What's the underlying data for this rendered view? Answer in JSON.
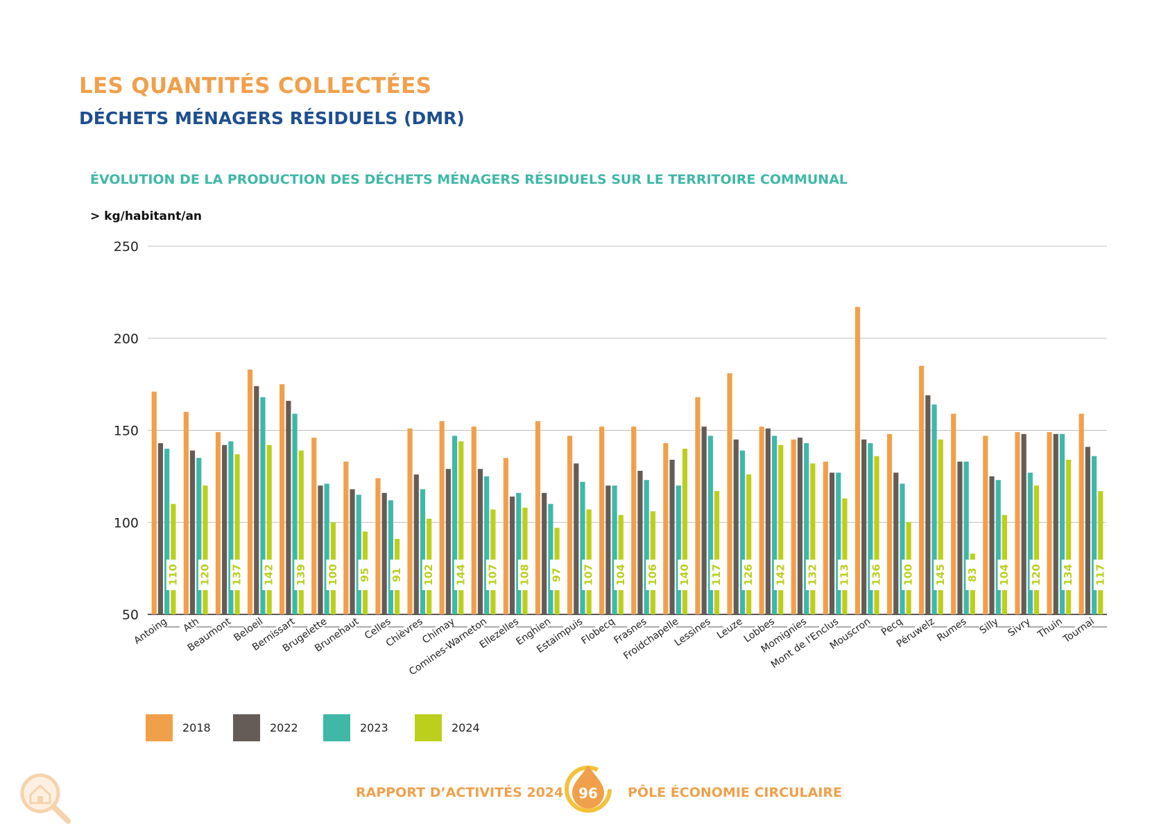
{
  "header": {
    "title": "LES QUANTITÉS COLLECTÉES",
    "subtitle": "DÉCHETS MÉNAGERS RÉSIDUELS (DMR)"
  },
  "chart_title": "ÉVOLUTION DE LA PRODUCTION DES DÉCHETS MÉNAGERS RÉSIDUELS SUR LE TERRITOIRE COMMUNAL",
  "unit_label": "> kg/habitant/an",
  "chart_data": {
    "type": "bar",
    "title": "ÉVOLUTION DE LA PRODUCTION DES DÉCHETS MÉNAGERS RÉSIDUELS SUR LE TERRITOIRE COMMUNAL",
    "ylabel": "> kg/habitant/an",
    "xlabel": "",
    "ylim": [
      50,
      250
    ],
    "yticks": [
      50,
      100,
      150,
      200,
      250
    ],
    "grid": true,
    "legend_position": "bottom-left",
    "data_labels_series": "2024",
    "categories": [
      "Antoing",
      "Ath",
      "Beaumont",
      "Beloeil",
      "Bernissart",
      "Brugelette",
      "Brunehaut",
      "Celles",
      "Chièvres",
      "Chimay",
      "Comines-Warneton",
      "Ellezelles",
      "Enghien",
      "Estaimpuis",
      "Flobecq",
      "Frasnes",
      "Froidchapelle",
      "Lessines",
      "Leuze",
      "Lobbes",
      "Momignies",
      "Mont de l'Enclus",
      "Mouscron",
      "Pecq",
      "Péruwelz",
      "Rumes",
      "Silly",
      "Sivry",
      "Thuin",
      "Tournai"
    ],
    "series": [
      {
        "name": "2018",
        "color": "#f0a04b",
        "values": [
          171,
          160,
          149,
          183,
          175,
          146,
          133,
          124,
          151,
          155,
          152,
          135,
          155,
          147,
          152,
          152,
          143,
          168,
          181,
          152,
          145,
          133,
          217,
          148,
          185,
          159,
          147,
          149,
          149,
          159
        ]
      },
      {
        "name": "2022",
        "color": "#655c57",
        "values": [
          143,
          139,
          142,
          174,
          166,
          120,
          118,
          116,
          126,
          129,
          129,
          114,
          116,
          132,
          120,
          128,
          134,
          152,
          145,
          151,
          146,
          127,
          145,
          127,
          169,
          133,
          125,
          148,
          148,
          141
        ]
      },
      {
        "name": "2023",
        "color": "#3fb8a8",
        "values": [
          140,
          135,
          144,
          168,
          159,
          121,
          115,
          112,
          118,
          147,
          125,
          116,
          110,
          122,
          120,
          123,
          120,
          147,
          139,
          147,
          143,
          127,
          143,
          121,
          164,
          133,
          123,
          127,
          148,
          136
        ]
      },
      {
        "name": "2024",
        "color": "#bccf1c",
        "values": [
          110,
          120,
          137,
          142,
          139,
          100,
          95,
          91,
          102,
          144,
          107,
          108,
          97,
          107,
          104,
          106,
          140,
          117,
          126,
          142,
          132,
          113,
          136,
          100,
          145,
          83,
          104,
          120,
          134,
          117
        ]
      }
    ]
  },
  "legend": [
    {
      "label": "2018",
      "color": "#f0a04b"
    },
    {
      "label": "2022",
      "color": "#655c57"
    },
    {
      "label": "2023",
      "color": "#3fb8a8"
    },
    {
      "label": "2024",
      "color": "#bccf1c"
    }
  ],
  "footer": {
    "left": "RAPPORT D’ACTIVITÉS 2024",
    "page_number": "96",
    "right": "PÔLE ÉCONOMIE CIRCULAIRE"
  },
  "logo_icon": "house-magnifier-icon"
}
